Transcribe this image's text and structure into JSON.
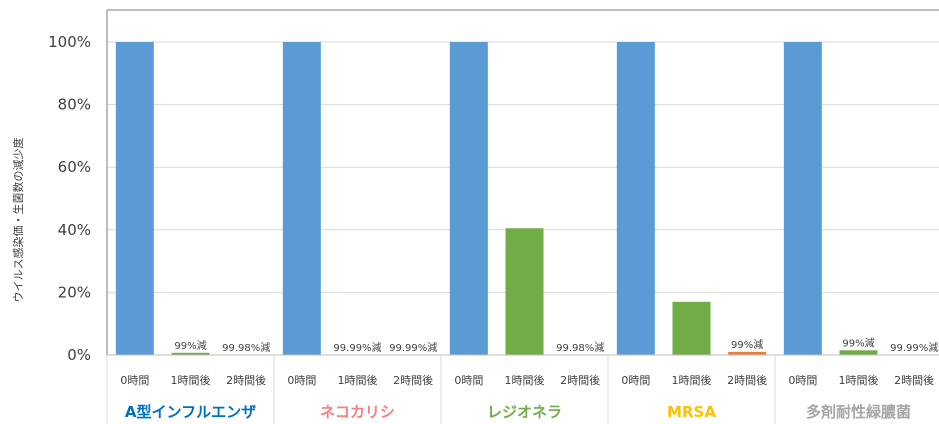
{
  "chart_data": {
    "type": "bar",
    "title": "",
    "ylabel": "ウイルス感染価・生菌数の減少度",
    "ylim": [
      0,
      100
    ],
    "y_ticks": [
      "0%",
      "20%",
      "40%",
      "60%",
      "80%",
      "100%"
    ],
    "grid": true,
    "groups": [
      {
        "name": "A型インフルエンザ",
        "color": "#0070c0",
        "bars": [
          {
            "category": "0時間",
            "value": 100,
            "color": "#5b9bd5",
            "label": ""
          },
          {
            "category": "1時間後",
            "value": 0.7,
            "color": "#70ad47",
            "label": "99%減"
          },
          {
            "category": "2時間後",
            "value": 0,
            "color": "#70ad47",
            "label": "99.98%減"
          }
        ]
      },
      {
        "name": "ネコカリシ",
        "color": "#ff7c80",
        "bars": [
          {
            "category": "0時間",
            "value": 100,
            "color": "#5b9bd5",
            "label": ""
          },
          {
            "category": "1時間後",
            "value": 0,
            "color": "#70ad47",
            "label": "99.99%減"
          },
          {
            "category": "2時間後",
            "value": 0,
            "color": "#70ad47",
            "label": "99.99%減"
          }
        ]
      },
      {
        "name": "レジオネラ",
        "color": "#70ad47",
        "bars": [
          {
            "category": "0時間",
            "value": 100,
            "color": "#5b9bd5",
            "label": ""
          },
          {
            "category": "1時間後",
            "value": 40.5,
            "color": "#70ad47",
            "label": ""
          },
          {
            "category": "2時間後",
            "value": 0,
            "color": "#70ad47",
            "label": "99.98%減"
          }
        ]
      },
      {
        "name": "MRSA",
        "color": "#ffc000",
        "bars": [
          {
            "category": "0時間",
            "value": 100,
            "color": "#5b9bd5",
            "label": ""
          },
          {
            "category": "1時間後",
            "value": 17,
            "color": "#70ad47",
            "label": ""
          },
          {
            "category": "2時間後",
            "value": 1,
            "color": "#ed7d31",
            "label": "99%減"
          }
        ]
      },
      {
        "name": "多剤耐性緑膿菌",
        "color": "#a6a6a6",
        "bars": [
          {
            "category": "0時間",
            "value": 100,
            "color": "#5b9bd5",
            "label": ""
          },
          {
            "category": "1時間後",
            "value": 1.5,
            "color": "#70ad47",
            "label": "99%減"
          },
          {
            "category": "2時間後",
            "value": 0,
            "color": "#70ad47",
            "label": "99.99%減"
          }
        ]
      }
    ]
  }
}
